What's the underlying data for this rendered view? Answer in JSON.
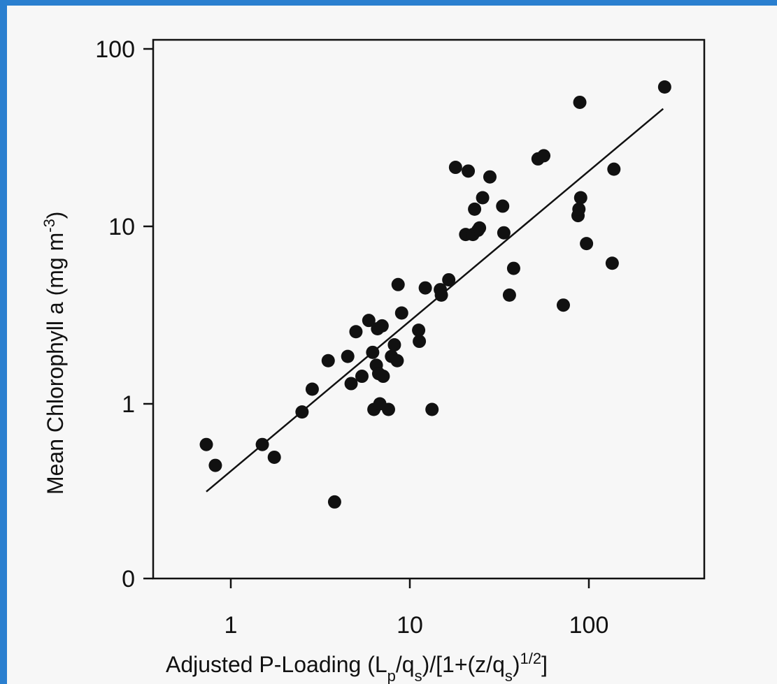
{
  "chart_data": {
    "type": "scatter",
    "xlabel_parts": [
      "Adjusted P-Loading (L",
      "p",
      "/q",
      "s",
      ")/[1+(z/q",
      "s",
      ")",
      "1/2",
      "]"
    ],
    "ylabel_parts": [
      "Mean Chlorophyll a (mg m",
      "-3",
      ")"
    ],
    "x_scale": "log",
    "y_scale": "log",
    "xlim": [
      0.5,
      500
    ],
    "ylim": [
      0.1,
      100
    ],
    "x_ticks": [
      {
        "value": 1,
        "label": "1"
      },
      {
        "value": 10,
        "label": "10"
      },
      {
        "value": 100,
        "label": "100"
      }
    ],
    "y_ticks": [
      {
        "value": 0.1,
        "label": "0"
      },
      {
        "value": 1,
        "label": "1"
      },
      {
        "value": 10,
        "label": "10"
      },
      {
        "value": 100,
        "label": "100"
      }
    ],
    "grid": false,
    "legend": "none",
    "points": [
      [
        0.73,
        0.59
      ],
      [
        0.82,
        0.45
      ],
      [
        1.5,
        0.59
      ],
      [
        1.75,
        0.5
      ],
      [
        2.5,
        0.9
      ],
      [
        2.85,
        1.21
      ],
      [
        3.5,
        1.75
      ],
      [
        3.8,
        0.28
      ],
      [
        4.5,
        1.85
      ],
      [
        4.7,
        1.3
      ],
      [
        5.0,
        2.55
      ],
      [
        5.4,
        1.43
      ],
      [
        5.9,
        2.95
      ],
      [
        6.2,
        1.95
      ],
      [
        6.3,
        0.93
      ],
      [
        6.5,
        1.65
      ],
      [
        6.6,
        2.65
      ],
      [
        6.7,
        1.48
      ],
      [
        6.8,
        1.0
      ],
      [
        7.0,
        2.75
      ],
      [
        7.1,
        1.43
      ],
      [
        7.6,
        0.93
      ],
      [
        7.9,
        1.85
      ],
      [
        8.2,
        2.15
      ],
      [
        8.5,
        1.75
      ],
      [
        8.6,
        4.7
      ],
      [
        9.0,
        3.25
      ],
      [
        11.2,
        2.6
      ],
      [
        11.3,
        2.25
      ],
      [
        12.2,
        4.5
      ],
      [
        13.3,
        0.93
      ],
      [
        14.8,
        4.4
      ],
      [
        15.0,
        4.1
      ],
      [
        16.5,
        5.0
      ],
      [
        18.0,
        21.5
      ],
      [
        20.5,
        9.0
      ],
      [
        21.2,
        20.5
      ],
      [
        22.5,
        9.0
      ],
      [
        23.0,
        12.5
      ],
      [
        24.0,
        9.5
      ],
      [
        24.5,
        9.8
      ],
      [
        25.5,
        14.5
      ],
      [
        28.0,
        19.0
      ],
      [
        33.0,
        13.0
      ],
      [
        33.5,
        9.2
      ],
      [
        36.0,
        4.1
      ],
      [
        38.0,
        5.8
      ],
      [
        52.0,
        24.0
      ],
      [
        56.0,
        25.0
      ],
      [
        72.0,
        3.6
      ],
      [
        87.0,
        11.5
      ],
      [
        88.0,
        12.5
      ],
      [
        89.0,
        50.0
      ],
      [
        90.0,
        14.5
      ],
      [
        97.0,
        8.0
      ],
      [
        135.0,
        6.2
      ],
      [
        138.0,
        21.0
      ],
      [
        265.0,
        61.0
      ]
    ],
    "fit_line": {
      "x": [
        0.73,
        260
      ],
      "y": [
        0.32,
        46
      ]
    },
    "colors": {
      "points": "#111111",
      "line": "#111111",
      "plot_bg": "#f7f7f7",
      "frame": "#2a7fcf"
    }
  }
}
